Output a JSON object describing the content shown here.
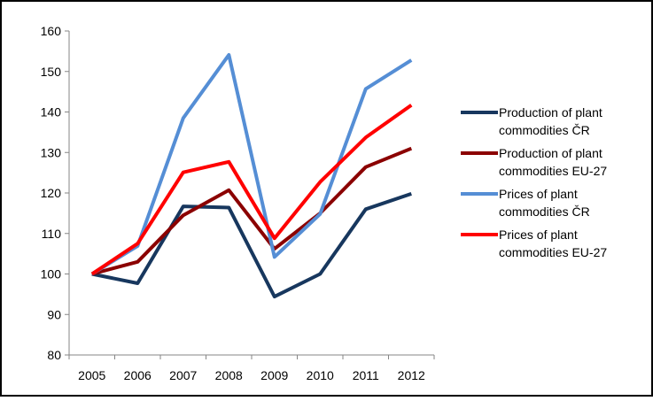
{
  "chart_data": {
    "type": "line",
    "categories": [
      "2005",
      "2006",
      "2007",
      "2008",
      "2009",
      "2010",
      "2011",
      "2012"
    ],
    "series": [
      {
        "name": "Production of plant commodities ČR",
        "color": "#17375e",
        "values": [
          100,
          97.7,
          116.7,
          116.4,
          94.4,
          100,
          116,
          119.8
        ]
      },
      {
        "name": "Production of plant commodities EU-27",
        "color": "#8b0000",
        "values": [
          100,
          103,
          114.5,
          120.7,
          106.2,
          115,
          126.4,
          131
        ]
      },
      {
        "name": "Prices of plant commodities ČR",
        "color": "#558ed5",
        "values": [
          100,
          106.9,
          138.5,
          154.1,
          104.2,
          114.8,
          145.7,
          152.8
        ]
      },
      {
        "name": "Prices of plant commodities EU-27",
        "color": "#ff0000",
        "values": [
          100,
          107.5,
          125.1,
          127.7,
          108.8,
          122.7,
          133.7,
          141.7
        ]
      }
    ],
    "ylim": [
      80,
      160
    ],
    "yticks": [
      80,
      90,
      100,
      110,
      120,
      130,
      140,
      150,
      160
    ],
    "legend": "right"
  }
}
